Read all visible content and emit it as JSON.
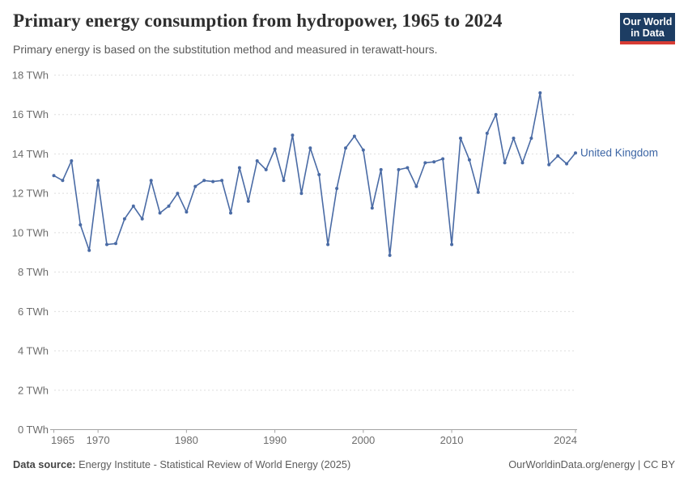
{
  "header": {
    "title": "Primary energy consumption from hydropower, 1965 to 2024",
    "subtitle": "Primary energy is based on the substitution method and measured in terawatt-hours.",
    "logo": {
      "line1": "Our World",
      "line2": "in Data",
      "bg_color": "#1d3d63",
      "accent_color": "#d73c34"
    }
  },
  "chart_data": {
    "type": "line",
    "title": "Primary energy consumption from hydropower, 1965 to 2024",
    "subtitle": "Primary energy is based on the substitution method and measured in terawatt-hours.",
    "unit": "TWh",
    "xlim": [
      1965,
      2024
    ],
    "ylim": [
      0,
      18
    ],
    "x_ticks": [
      1965,
      1970,
      1980,
      1990,
      2000,
      2010,
      2024
    ],
    "y_ticks": [
      0,
      2,
      4,
      6,
      8,
      10,
      12,
      14,
      16,
      18
    ],
    "y_tick_suffix": " TWh",
    "grid": "dashed-horizontal",
    "legend_position": "end-of-line-label",
    "years": [
      1965,
      1966,
      1967,
      1968,
      1969,
      1970,
      1971,
      1972,
      1973,
      1974,
      1975,
      1976,
      1977,
      1978,
      1979,
      1980,
      1981,
      1982,
      1983,
      1984,
      1985,
      1986,
      1987,
      1988,
      1989,
      1990,
      1991,
      1992,
      1993,
      1994,
      1995,
      1996,
      1997,
      1998,
      1999,
      2000,
      2001,
      2002,
      2003,
      2004,
      2005,
      2006,
      2007,
      2008,
      2009,
      2010,
      2011,
      2012,
      2013,
      2014,
      2015,
      2016,
      2017,
      2018,
      2019,
      2020,
      2021,
      2022,
      2023,
      2024
    ],
    "series": [
      {
        "name": "United Kingdom",
        "color": "#4a6ba5",
        "values": [
          12.9,
          12.65,
          13.65,
          10.4,
          9.1,
          12.65,
          9.4,
          9.45,
          10.7,
          11.35,
          10.7,
          12.65,
          11.0,
          11.35,
          12.0,
          11.05,
          12.35,
          12.65,
          12.6,
          12.65,
          11.0,
          13.3,
          11.6,
          13.65,
          13.2,
          14.25,
          12.65,
          14.95,
          12.0,
          14.3,
          12.95,
          9.4,
          12.25,
          14.3,
          14.9,
          14.2,
          11.25,
          13.2,
          8.85,
          13.2,
          13.3,
          12.35,
          13.55,
          13.6,
          13.75,
          9.4,
          14.8,
          13.7,
          12.05,
          15.05,
          16.0,
          13.55,
          14.8,
          13.55,
          14.8,
          17.1,
          13.45,
          13.9,
          13.5,
          14.05
        ]
      }
    ]
  },
  "footer": {
    "source_label": "Data source:",
    "source_text": "Energy Institute - Statistical Review of World Energy (2025)",
    "credit": "OurWorldinData.org/energy | CC BY"
  }
}
